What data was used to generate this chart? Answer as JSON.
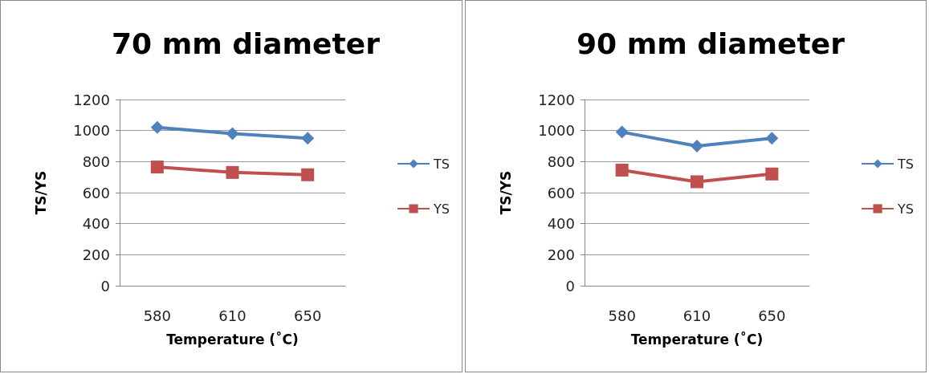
{
  "chart_data": [
    {
      "type": "line",
      "title": "70 mm diameter",
      "xlabel": "Temperature (˚C)",
      "ylabel": "TS/YS",
      "categories": [
        "580",
        "610",
        "650"
      ],
      "series": [
        {
          "name": "TS",
          "color": "#4f81bd",
          "marker": "diamond",
          "values": [
            1020,
            980,
            950
          ]
        },
        {
          "name": "YS",
          "color": "#c0504d",
          "marker": "square",
          "values": [
            765,
            730,
            715
          ]
        }
      ],
      "ylim": [
        0,
        1200
      ],
      "yticks": [
        0,
        200,
        400,
        600,
        800,
        1000,
        1200
      ],
      "grid": "y",
      "legend": "right"
    },
    {
      "type": "line",
      "title": "90 mm diameter",
      "xlabel": "Temperature (˚C)",
      "ylabel": "TS/YS",
      "categories": [
        "580",
        "610",
        "650"
      ],
      "series": [
        {
          "name": "TS",
          "color": "#4f81bd",
          "marker": "diamond",
          "values": [
            990,
            900,
            950
          ]
        },
        {
          "name": "YS",
          "color": "#c0504d",
          "marker": "square",
          "values": [
            745,
            670,
            720
          ]
        }
      ],
      "ylim": [
        0,
        1200
      ],
      "yticks": [
        0,
        200,
        400,
        600,
        800,
        1000,
        1200
      ],
      "grid": "y",
      "legend": "right"
    }
  ]
}
